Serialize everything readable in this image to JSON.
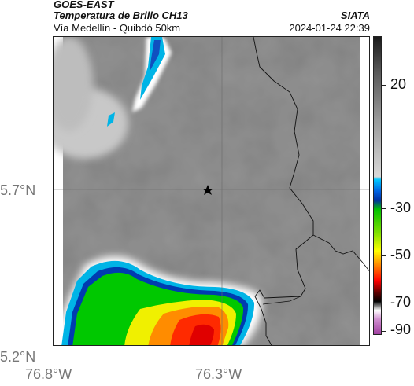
{
  "header": {
    "title": "GOES-EAST",
    "subtitle": "Temperatura de Brillo CH13",
    "org": "SIATA",
    "region": "Vía Medellín - Quibdó 50km",
    "datetime": "2024-01-24 22:39"
  },
  "axes": {
    "y_labels": [
      "5.7°N",
      "5.2°N"
    ],
    "x_labels": [
      "76.8°W",
      "76.3°W"
    ]
  },
  "colorbar": {
    "ticks": [
      "20",
      "-30",
      "-50",
      "-70",
      "-90"
    ],
    "colors": [
      "#1a1a1a",
      "#6e6e6e",
      "#d8d8d8",
      "#00c8ff",
      "#0040c0",
      "#00c000",
      "#ffff00",
      "#ff0000",
      "#000000",
      "#ffffff",
      "#c060c0"
    ]
  },
  "map": {
    "marker_icon": "star-icon"
  }
}
